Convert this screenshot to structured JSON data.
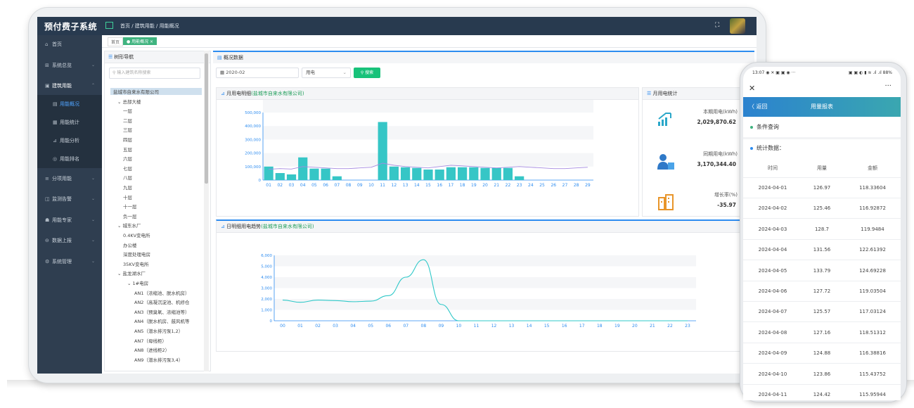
{
  "app": {
    "title": "预付费子系统",
    "breadcrumb": "首页 / 建筑用能 / 用能概况"
  },
  "tabs": {
    "home": "首页",
    "active": "● 用能概况 ×"
  },
  "sidebar": {
    "items": [
      {
        "label": "首页",
        "icon": "⌂"
      },
      {
        "label": "系统总览",
        "icon": "⊞",
        "chev": "⌄"
      },
      {
        "label": "建筑用能",
        "icon": "▣",
        "chev": "⌃"
      },
      {
        "label": "用能概况",
        "icon": "▤"
      },
      {
        "label": "用能统计",
        "icon": "▦"
      },
      {
        "label": "用能分析",
        "icon": "⊿"
      },
      {
        "label": "用能排名",
        "icon": "◎"
      },
      {
        "label": "分项用能",
        "icon": "≡",
        "chev": "⌄"
      },
      {
        "label": "监测告警",
        "icon": "◫",
        "chev": "⌄"
      },
      {
        "label": "用能专家",
        "icon": "☗",
        "chev": "⌄"
      },
      {
        "label": "数据上报",
        "icon": "⊖",
        "chev": "⌄"
      },
      {
        "label": "系统管理",
        "icon": "⚙",
        "chev": "⌄"
      }
    ]
  },
  "tree": {
    "title": "树形导航",
    "placeholder": "输入建筑名称搜索",
    "nodes": [
      {
        "t": "盐城市自来水有限公司",
        "lvl": 0
      },
      {
        "t": "⌄ 总部大楼",
        "lvl": 1
      },
      {
        "t": "一层",
        "lvl": 3
      },
      {
        "t": "二层",
        "lvl": 3
      },
      {
        "t": "三层",
        "lvl": 3
      },
      {
        "t": "四层",
        "lvl": 3
      },
      {
        "t": "五层",
        "lvl": 3
      },
      {
        "t": "六层",
        "lvl": 3
      },
      {
        "t": "七层",
        "lvl": 3
      },
      {
        "t": "八层",
        "lvl": 3
      },
      {
        "t": "九层",
        "lvl": 3
      },
      {
        "t": "十层",
        "lvl": 3
      },
      {
        "t": "十一层",
        "lvl": 3
      },
      {
        "t": "负一层",
        "lvl": 3
      },
      {
        "t": "⌄ 城东水厂",
        "lvl": 1
      },
      {
        "t": "0.4KV变电所",
        "lvl": 3
      },
      {
        "t": "办公楼",
        "lvl": 3
      },
      {
        "t": "深度处理电房",
        "lvl": 3
      },
      {
        "t": "35KV变电所",
        "lvl": 3
      },
      {
        "t": "⌄ 盐龙湖水厂",
        "lvl": 1
      },
      {
        "t": "⌄ 1#电房",
        "lvl": 2
      },
      {
        "t": "AN1（浓缩池、脱水机房）",
        "lvl": 4
      },
      {
        "t": "AN2（高凝沉淀池、机修仓",
        "lvl": 4
      },
      {
        "t": "AN3（预臭氧、浓缩池等）",
        "lvl": 4
      },
      {
        "t": "AN4（脱水机房、鼓风机等",
        "lvl": 4
      },
      {
        "t": "AN5（潜水排污泵1,2）",
        "lvl": 4
      },
      {
        "t": "AN7（母线柜）",
        "lvl": 4
      },
      {
        "t": "AN8（进线柜2）",
        "lvl": 4
      },
      {
        "t": "AN9（潜水排污泵3,4）",
        "lvl": 4
      }
    ]
  },
  "main": {
    "title": "概况数据",
    "date": "2020-02",
    "type": "用电",
    "search": "搜索"
  },
  "monthly": {
    "title": "月用电明细",
    "company": "(盐城市自来水有限公司)"
  },
  "daily": {
    "title": "日明细用电趋势",
    "company": "(盐城市自来水有限公司)"
  },
  "stats": {
    "title": "月用电统计",
    "items": [
      {
        "label": "本期用电(kWh)",
        "value": "2,029,870.62"
      },
      {
        "label": "同期用电(kWh)",
        "value": "3,170,344.40"
      },
      {
        "label": "增长率(%)",
        "value": "-35.97"
      }
    ]
  },
  "chart_data": [
    {
      "type": "bar",
      "categories": [
        "01",
        "02",
        "03",
        "04",
        "05",
        "06",
        "07",
        "08",
        "09",
        "10",
        "11",
        "12",
        "13",
        "14",
        "15",
        "16",
        "17",
        "18",
        "19",
        "20",
        "21",
        "22",
        "23",
        "24",
        "25",
        "26",
        "27",
        "28",
        "29"
      ],
      "values": [
        100000,
        52000,
        42000,
        168000,
        85000,
        85000,
        28000,
        0,
        0,
        0,
        430000,
        100000,
        95000,
        90000,
        78000,
        78000,
        95000,
        95000,
        95000,
        90000,
        90000,
        90000,
        28000,
        0,
        0,
        0,
        0,
        0,
        0
      ],
      "line": [
        80000,
        85000,
        82000,
        100000,
        95000,
        90000,
        85000,
        85000,
        90000,
        95000,
        125000,
        110000,
        100000,
        95000,
        90000,
        100000,
        110000,
        105000,
        100000,
        95000,
        90000,
        95000,
        100000,
        95000,
        90000,
        85000,
        85000,
        90000,
        95000
      ],
      "ylim": [
        0,
        500000
      ],
      "yticks": [
        "0",
        "100,000",
        "200,000",
        "300,000",
        "400,000",
        "500,000"
      ]
    },
    {
      "type": "line",
      "categories": [
        "00",
        "01",
        "02",
        "03",
        "04",
        "05",
        "06",
        "07",
        "08",
        "09",
        "10",
        "11",
        "12",
        "13",
        "14",
        "15",
        "16",
        "17",
        "18",
        "19",
        "20",
        "21",
        "22",
        "23"
      ],
      "values": [
        1900,
        1700,
        1900,
        1850,
        1750,
        1800,
        2300,
        4000,
        5600,
        1500,
        0,
        0,
        0,
        0,
        0,
        0,
        0,
        0,
        0,
        0,
        0,
        0,
        0,
        0
      ],
      "ylim": [
        0,
        6000
      ],
      "yticks": [
        "0",
        "1,000",
        "2,000",
        "3,000",
        "4,000",
        "5,000",
        "6,000"
      ]
    }
  ],
  "phone": {
    "time": "13:07 ◉ ✕ ▣ ▣ ◉ ···",
    "right": "▣ ▣ ◐ ▮ ≋ .ıl .ıl 88%",
    "back": "〈 返回",
    "title": "用量报表",
    "cond": "条件查询",
    "statlbl": "统计数据：",
    "cols": [
      "时间",
      "用量",
      "金额"
    ],
    "rows": [
      [
        "2024-04-01",
        "126.97",
        "118.33604"
      ],
      [
        "2024-04-02",
        "125.46",
        "116.92872"
      ],
      [
        "2024-04-03",
        "128.7",
        "119.9484"
      ],
      [
        "2024-04-04",
        "131.56",
        "122.61392"
      ],
      [
        "2024-04-05",
        "133.79",
        "124.69228"
      ],
      [
        "2024-04-06",
        "127.72",
        "119.03504"
      ],
      [
        "2024-04-07",
        "125.57",
        "117.03124"
      ],
      [
        "2024-04-08",
        "127.16",
        "118.51312"
      ],
      [
        "2024-04-09",
        "124.88",
        "116.38816"
      ],
      [
        "2024-04-10",
        "123.86",
        "115.43752"
      ],
      [
        "2024-04-11",
        "124.42",
        "115.95944"
      ]
    ]
  }
}
